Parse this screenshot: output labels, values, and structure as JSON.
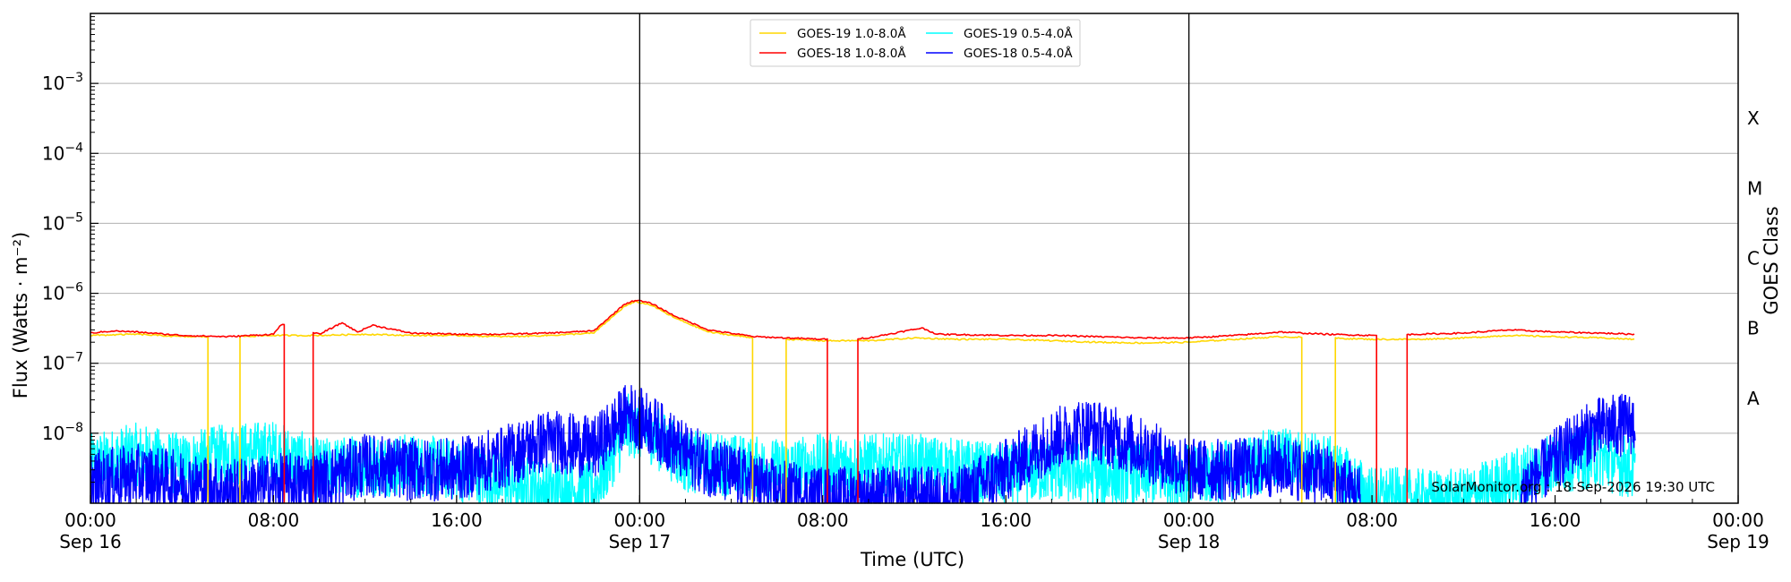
{
  "chart_data": {
    "type": "line",
    "xlabel": "Time (UTC)",
    "ylabel": "Flux (Watts · m⁻²)",
    "ylabel_right": "GOES Class",
    "yscale": "log",
    "ylim": [
      1e-09,
      0.01
    ],
    "xlim": [
      "2026-09-16T00:00",
      "2026-09-19T00:00"
    ],
    "grid": "horizontal",
    "legend_position": "top-center",
    "credit": "SolarMonitor.org : 18-Sep-2026 19:30 UTC",
    "x_ticks": [
      {
        "at": "2026-09-16T00:00",
        "line1": "00:00",
        "line2": "Sep 16"
      },
      {
        "at": "2026-09-16T08:00",
        "line1": "08:00",
        "line2": ""
      },
      {
        "at": "2026-09-16T16:00",
        "line1": "16:00",
        "line2": ""
      },
      {
        "at": "2026-09-17T00:00",
        "line1": "00:00",
        "line2": "Sep 17"
      },
      {
        "at": "2026-09-17T08:00",
        "line1": "08:00",
        "line2": ""
      },
      {
        "at": "2026-09-17T16:00",
        "line1": "16:00",
        "line2": ""
      },
      {
        "at": "2026-09-18T00:00",
        "line1": "00:00",
        "line2": "Sep 18"
      },
      {
        "at": "2026-09-18T08:00",
        "line1": "08:00",
        "line2": ""
      },
      {
        "at": "2026-09-18T16:00",
        "line1": "16:00",
        "line2": ""
      },
      {
        "at": "2026-09-19T00:00",
        "line1": "00:00",
        "line2": "Sep 19"
      }
    ],
    "day_boundaries": [
      "2026-09-17T00:00",
      "2026-09-18T00:00"
    ],
    "y_ticks": [
      {
        "value": 0.001,
        "base": "10",
        "exp": "−3"
      },
      {
        "value": 0.0001,
        "base": "10",
        "exp": "−4"
      },
      {
        "value": 1e-05,
        "base": "10",
        "exp": "−5"
      },
      {
        "value": 1e-06,
        "base": "10",
        "exp": "−6"
      },
      {
        "value": 1e-07,
        "base": "10",
        "exp": "−7"
      },
      {
        "value": 1e-08,
        "base": "10",
        "exp": "−8"
      }
    ],
    "goes_classes": [
      {
        "label": "X",
        "value": 0.000316
      },
      {
        "label": "M",
        "value": 3.16e-05
      },
      {
        "label": "C",
        "value": 3.16e-06
      },
      {
        "label": "B",
        "value": 3.16e-07
      },
      {
        "label": "A",
        "value": 3.16e-08
      }
    ],
    "series": [
      {
        "name": "GOES-19 1.0-8.0Å",
        "color": "#ffd700",
        "points": [
          [
            "2026-09-16T00:00",
            2.5e-07
          ],
          [
            "2026-09-16T02:00",
            2.6e-07
          ],
          [
            "2026-09-16T04:00",
            2.4e-07
          ],
          [
            "2026-09-16T06:00",
            2.4e-07
          ],
          [
            "2026-09-16T08:00",
            2.5e-07
          ],
          [
            "2026-09-16T10:00",
            2.5e-07
          ],
          [
            "2026-09-16T12:00",
            2.6e-07
          ],
          [
            "2026-09-16T14:00",
            2.5e-07
          ],
          [
            "2026-09-16T16:00",
            2.5e-07
          ],
          [
            "2026-09-16T18:00",
            2.4e-07
          ],
          [
            "2026-09-16T20:00",
            2.5e-07
          ],
          [
            "2026-09-16T22:00",
            2.7e-07
          ],
          [
            "2026-09-16T23:20",
            6.5e-07
          ],
          [
            "2026-09-16T23:50",
            7.6e-07
          ],
          [
            "2026-09-17T00:30",
            6.8e-07
          ],
          [
            "2026-09-17T01:30",
            4.5e-07
          ],
          [
            "2026-09-17T03:00",
            2.8e-07
          ],
          [
            "2026-09-17T05:00",
            2.3e-07
          ],
          [
            "2026-09-17T08:00",
            2.1e-07
          ],
          [
            "2026-09-17T10:00",
            2.1e-07
          ],
          [
            "2026-09-17T12:00",
            2.3e-07
          ],
          [
            "2026-09-17T14:00",
            2.2e-07
          ],
          [
            "2026-09-17T16:00",
            2.2e-07
          ],
          [
            "2026-09-17T18:00",
            2.1e-07
          ],
          [
            "2026-09-17T20:00",
            2e-07
          ],
          [
            "2026-09-17T22:00",
            1.95e-07
          ],
          [
            "2026-09-18T00:00",
            2e-07
          ],
          [
            "2026-09-18T02:00",
            2.2e-07
          ],
          [
            "2026-09-18T04:00",
            2.4e-07
          ],
          [
            "2026-09-18T06:00",
            2.3e-07
          ],
          [
            "2026-09-18T08:00",
            2.2e-07
          ],
          [
            "2026-09-18T10:00",
            2.2e-07
          ],
          [
            "2026-09-18T12:00",
            2.3e-07
          ],
          [
            "2026-09-18T14:00",
            2.5e-07
          ],
          [
            "2026-09-18T16:00",
            2.4e-07
          ],
          [
            "2026-09-18T18:00",
            2.3e-07
          ],
          [
            "2026-09-18T19:30",
            2.2e-07
          ]
        ],
        "gaps": [
          [
            "2026-09-16T05:10",
            "2026-09-16T06:30"
          ],
          [
            "2026-09-17T05:00",
            "2026-09-17T06:20"
          ],
          [
            "2026-09-18T05:00",
            "2026-09-18T06:20"
          ]
        ]
      },
      {
        "name": "GOES-18 1.0-8.0Å",
        "color": "#ff0000",
        "points": [
          [
            "2026-09-16T00:00",
            2.7e-07
          ],
          [
            "2026-09-16T01:00",
            2.9e-07
          ],
          [
            "2026-09-16T02:00",
            2.8e-07
          ],
          [
            "2026-09-16T04:00",
            2.5e-07
          ],
          [
            "2026-09-16T06:00",
            2.4e-07
          ],
          [
            "2026-09-16T08:00",
            2.6e-07
          ],
          [
            "2026-09-16T08:20",
            3.6e-07
          ],
          [
            "2026-09-16T10:00",
            2.6e-07
          ],
          [
            "2026-09-16T11:00",
            3.8e-07
          ],
          [
            "2026-09-16T11:40",
            2.8e-07
          ],
          [
            "2026-09-16T12:20",
            3.5e-07
          ],
          [
            "2026-09-16T14:00",
            2.7e-07
          ],
          [
            "2026-09-16T16:00",
            2.6e-07
          ],
          [
            "2026-09-16T18:00",
            2.6e-07
          ],
          [
            "2026-09-16T20:00",
            2.7e-07
          ],
          [
            "2026-09-16T22:00",
            2.9e-07
          ],
          [
            "2026-09-16T23:20",
            7e-07
          ],
          [
            "2026-09-16T23:50",
            8e-07
          ],
          [
            "2026-09-17T00:30",
            7.2e-07
          ],
          [
            "2026-09-17T01:30",
            4.8e-07
          ],
          [
            "2026-09-17T03:00",
            3e-07
          ],
          [
            "2026-09-17T05:00",
            2.4e-07
          ],
          [
            "2026-09-17T08:00",
            2.2e-07
          ],
          [
            "2026-09-17T10:00",
            2.3e-07
          ],
          [
            "2026-09-17T12:20",
            3.2e-07
          ],
          [
            "2026-09-17T13:00",
            2.6e-07
          ],
          [
            "2026-09-17T16:00",
            2.5e-07
          ],
          [
            "2026-09-17T18:00",
            2.5e-07
          ],
          [
            "2026-09-17T20:00",
            2.4e-07
          ],
          [
            "2026-09-17T22:00",
            2.3e-07
          ],
          [
            "2026-09-18T00:00",
            2.3e-07
          ],
          [
            "2026-09-18T02:00",
            2.5e-07
          ],
          [
            "2026-09-18T04:00",
            2.8e-07
          ],
          [
            "2026-09-18T06:00",
            2.6e-07
          ],
          [
            "2026-09-18T08:00",
            2.5e-07
          ],
          [
            "2026-09-18T10:00",
            2.6e-07
          ],
          [
            "2026-09-18T12:00",
            2.7e-07
          ],
          [
            "2026-09-18T14:00",
            3e-07
          ],
          [
            "2026-09-18T16:00",
            2.8e-07
          ],
          [
            "2026-09-18T18:00",
            2.7e-07
          ],
          [
            "2026-09-18T19:30",
            2.6e-07
          ]
        ],
        "gaps": [
          [
            "2026-09-16T08:30",
            "2026-09-16T09:40"
          ],
          [
            "2026-09-17T08:15",
            "2026-09-17T09:30"
          ],
          [
            "2026-09-18T08:15",
            "2026-09-18T09:30"
          ]
        ]
      },
      {
        "name": "GOES-19 0.5-4.0Å",
        "color": "#00ffff",
        "noisy": true,
        "points": [
          [
            "2026-09-16T00:00",
            3.5e-09
          ],
          [
            "2026-09-16T02:00",
            5e-09
          ],
          [
            "2026-09-16T04:00",
            3.5e-09
          ],
          [
            "2026-09-16T06:00",
            5e-09
          ],
          [
            "2026-09-16T08:00",
            5.5e-09
          ],
          [
            "2026-09-16T10:00",
            3e-09
          ],
          [
            "2026-09-16T12:00",
            3.5e-09
          ],
          [
            "2026-09-16T14:00",
            3.5e-09
          ],
          [
            "2026-09-16T16:00",
            3e-09
          ],
          [
            "2026-09-16T18:00",
            2e-09
          ],
          [
            "2026-09-16T20:00",
            1.5e-09
          ],
          [
            "2026-09-16T22:00",
            1.5e-09
          ],
          [
            "2026-09-16T23:30",
            1.3e-08
          ],
          [
            "2026-09-17T00:30",
            1e-08
          ],
          [
            "2026-09-17T02:00",
            4e-09
          ],
          [
            "2026-09-17T04:00",
            3.5e-09
          ],
          [
            "2026-09-17T06:00",
            3e-09
          ],
          [
            "2026-09-17T08:00",
            3.5e-09
          ],
          [
            "2026-09-17T10:00",
            3.5e-09
          ],
          [
            "2026-09-17T12:00",
            3.5e-09
          ],
          [
            "2026-09-17T14:00",
            3e-09
          ],
          [
            "2026-09-17T16:00",
            2.5e-09
          ],
          [
            "2026-09-17T18:00",
            3e-09
          ],
          [
            "2026-09-17T20:00",
            2.5e-09
          ],
          [
            "2026-09-17T22:00",
            2.5e-09
          ],
          [
            "2026-09-18T00:00",
            2.5e-09
          ],
          [
            "2026-09-18T02:00",
            3e-09
          ],
          [
            "2026-09-18T04:00",
            4.5e-09
          ],
          [
            "2026-09-18T06:00",
            3.5e-09
          ],
          [
            "2026-09-18T08:00",
            1.2e-09
          ],
          [
            "2026-09-18T10:00",
            1.1e-09
          ],
          [
            "2026-09-18T12:00",
            1.1e-09
          ],
          [
            "2026-09-18T14:00",
            2e-09
          ],
          [
            "2026-09-18T16:00",
            4e-09
          ],
          [
            "2026-09-18T18:00",
            4.5e-09
          ],
          [
            "2026-09-18T19:30",
            3e-09
          ]
        ]
      },
      {
        "name": "GOES-18 0.5-4.0Å",
        "color": "#0000ff",
        "noisy": true,
        "points": [
          [
            "2026-09-16T00:00",
            2e-09
          ],
          [
            "2026-09-16T02:00",
            2.5e-09
          ],
          [
            "2026-09-16T04:00",
            2e-09
          ],
          [
            "2026-09-16T06:00",
            1.5e-09
          ],
          [
            "2026-09-16T08:00",
            1.8e-09
          ],
          [
            "2026-09-16T10:00",
            2e-09
          ],
          [
            "2026-09-16T12:00",
            3.5e-09
          ],
          [
            "2026-09-16T14:00",
            3e-09
          ],
          [
            "2026-09-16T16:00",
            3e-09
          ],
          [
            "2026-09-16T18:00",
            4.5e-09
          ],
          [
            "2026-09-16T20:00",
            8e-09
          ],
          [
            "2026-09-16T22:00",
            6e-09
          ],
          [
            "2026-09-16T23:30",
            2e-08
          ],
          [
            "2026-09-17T00:30",
            1.3e-08
          ],
          [
            "2026-09-17T02:00",
            5e-09
          ],
          [
            "2026-09-17T04:00",
            2.5e-09
          ],
          [
            "2026-09-17T06:00",
            1.5e-09
          ],
          [
            "2026-09-17T08:00",
            1.2e-09
          ],
          [
            "2026-09-17T10:00",
            1.2e-09
          ],
          [
            "2026-09-17T12:00",
            1.2e-09
          ],
          [
            "2026-09-17T14:00",
            1.2e-09
          ],
          [
            "2026-09-17T16:00",
            3e-09
          ],
          [
            "2026-09-17T18:00",
            8e-09
          ],
          [
            "2026-09-17T19:30",
            1.2e-08
          ],
          [
            "2026-09-17T21:00",
            8e-09
          ],
          [
            "2026-09-17T22:30",
            5e-09
          ],
          [
            "2026-09-18T00:00",
            3e-09
          ],
          [
            "2026-09-18T02:00",
            3e-09
          ],
          [
            "2026-09-18T04:00",
            3.5e-09
          ],
          [
            "2026-09-18T06:00",
            2.5e-09
          ],
          [
            "2026-09-18T08:00",
            1e-09
          ],
          [
            "2026-09-18T10:00",
            1e-09
          ],
          [
            "2026-09-18T12:00",
            1e-09
          ],
          [
            "2026-09-18T14:00",
            1.1e-09
          ],
          [
            "2026-09-18T15:30",
            3e-09
          ],
          [
            "2026-09-18T17:00",
            8e-09
          ],
          [
            "2026-09-18T18:00",
            1.2e-08
          ],
          [
            "2026-09-18T19:30",
            1.4e-08
          ]
        ],
        "gaps": [
          [
            "2026-09-18T07:30",
            "2026-09-18T14:30"
          ]
        ]
      }
    ]
  }
}
